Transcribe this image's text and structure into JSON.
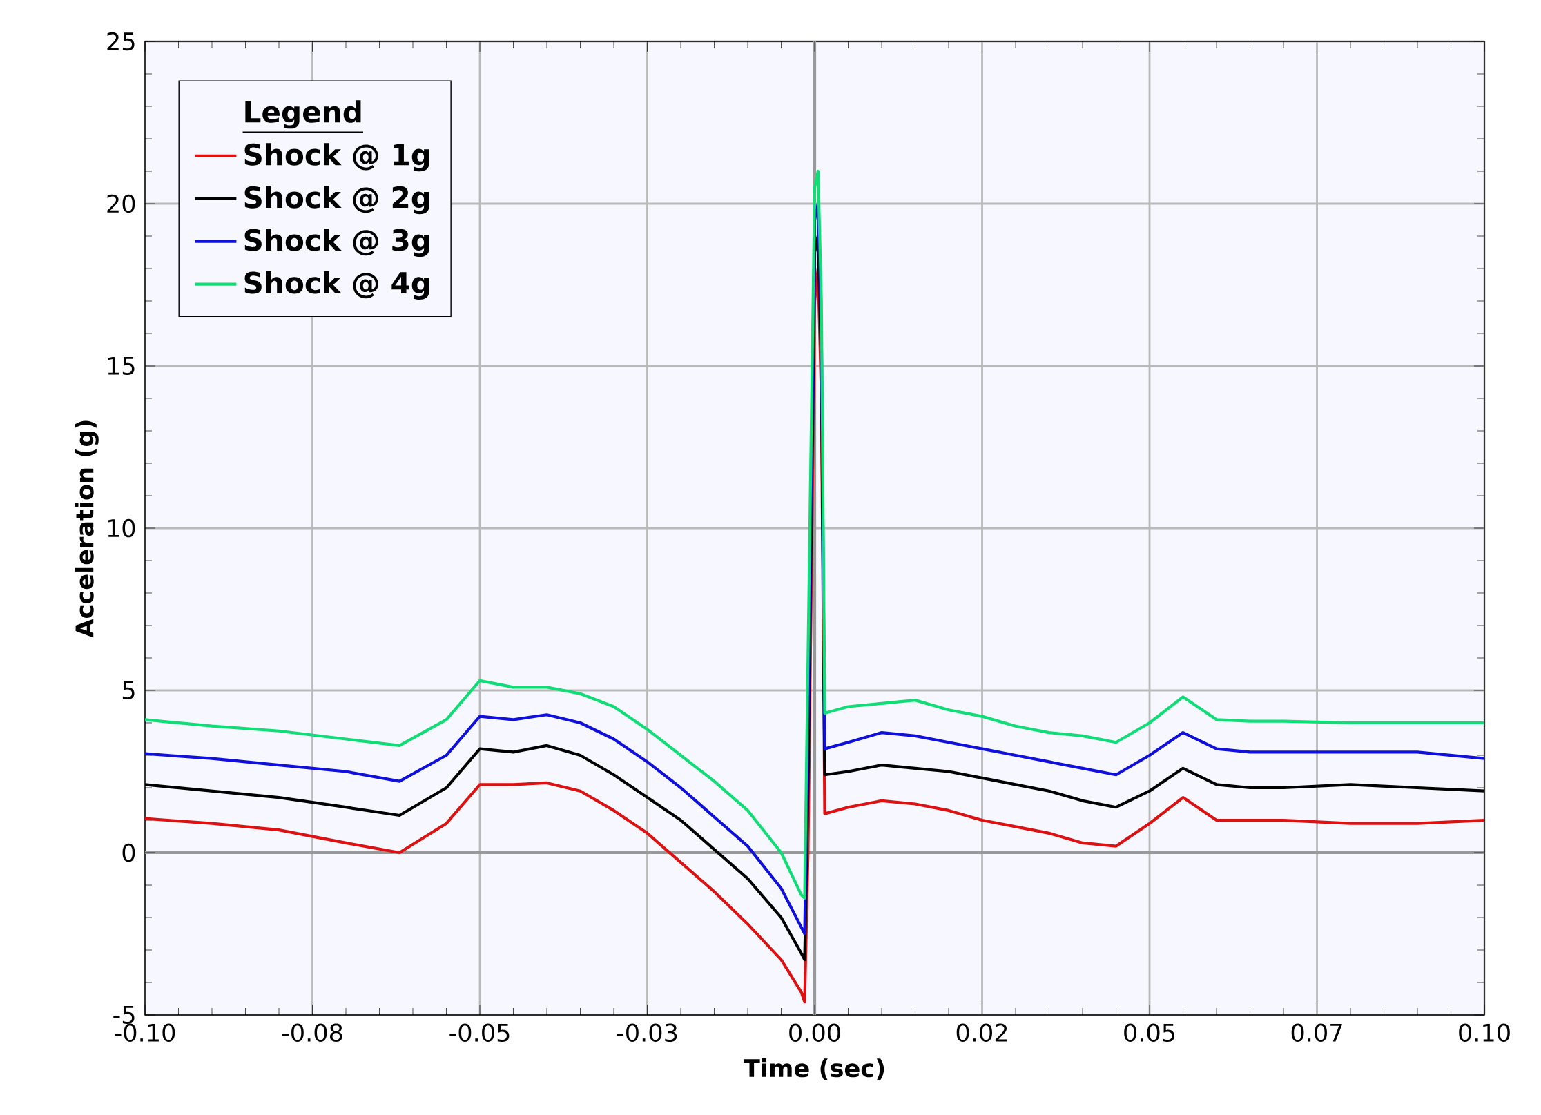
{
  "chart_data": {
    "type": "line",
    "xlabel": "Time (sec)",
    "ylabel": "Acceleration (g)",
    "legend_title": "Legend",
    "legend": "top left",
    "grid": true,
    "xlim": [
      -0.1,
      0.1
    ],
    "ylim": [
      -5,
      25
    ],
    "xticks": [
      {
        "value": -0.1,
        "label": "-0.10"
      },
      {
        "value": -0.075,
        "label": "-0.08"
      },
      {
        "value": -0.05,
        "label": "-0.05"
      },
      {
        "value": -0.025,
        "label": "-0.03"
      },
      {
        "value": 0,
        "label": "0.00"
      },
      {
        "value": 0.025,
        "label": "0.02"
      },
      {
        "value": 0.05,
        "label": "0.05"
      },
      {
        "value": 0.075,
        "label": "0.07"
      },
      {
        "value": 0.1,
        "label": "0.10"
      }
    ],
    "yticks": [
      -5,
      0,
      5,
      10,
      15,
      20,
      25
    ],
    "x": [
      -0.1,
      -0.09,
      -0.08,
      -0.07,
      -0.062,
      -0.055,
      -0.05,
      -0.045,
      -0.04,
      -0.035,
      -0.03,
      -0.025,
      -0.02,
      -0.015,
      -0.01,
      -0.005,
      -0.002,
      -0.0015,
      -0.001,
      0.0,
      0.0005,
      0.001,
      0.0015,
      0.005,
      0.01,
      0.015,
      0.02,
      0.025,
      0.03,
      0.035,
      0.04,
      0.045,
      0.05,
      0.055,
      0.06,
      0.065,
      0.07,
      0.08,
      0.09,
      0.1
    ],
    "series": [
      {
        "name": "Shock @ 1g",
        "color": "#dd1111",
        "values": [
          1.05,
          0.9,
          0.7,
          0.3,
          0.0,
          0.9,
          2.1,
          2.1,
          2.15,
          1.9,
          1.3,
          0.6,
          -0.3,
          -1.2,
          -2.2,
          -3.3,
          -4.3,
          -4.6,
          0.0,
          17,
          18,
          14,
          1.2,
          1.4,
          1.6,
          1.5,
          1.3,
          1.0,
          0.8,
          0.6,
          0.3,
          0.2,
          0.9,
          1.7,
          1.0,
          1.0,
          1.0,
          0.9,
          0.9,
          1.0
        ]
      },
      {
        "name": "Shock @ 2g",
        "color": "#000000",
        "values": [
          2.1,
          1.9,
          1.7,
          1.4,
          1.15,
          2.0,
          3.2,
          3.1,
          3.3,
          3.0,
          2.4,
          1.7,
          1.0,
          0.1,
          -0.8,
          -2.0,
          -3.1,
          -3.3,
          2.0,
          18.5,
          19,
          15,
          2.4,
          2.5,
          2.7,
          2.6,
          2.5,
          2.3,
          2.1,
          1.9,
          1.6,
          1.4,
          1.9,
          2.6,
          2.1,
          2.0,
          2.0,
          2.1,
          2.0,
          1.9
        ]
      },
      {
        "name": "Shock @ 3g",
        "color": "#1010dd",
        "values": [
          3.05,
          2.9,
          2.7,
          2.5,
          2.2,
          3.0,
          4.2,
          4.1,
          4.25,
          4.0,
          3.5,
          2.8,
          2.0,
          1.1,
          0.2,
          -1.1,
          -2.3,
          -2.5,
          4.0,
          19.5,
          20,
          16,
          3.2,
          3.4,
          3.7,
          3.6,
          3.4,
          3.2,
          3.0,
          2.8,
          2.6,
          2.4,
          3.0,
          3.7,
          3.2,
          3.1,
          3.1,
          3.1,
          3.1,
          2.9
        ]
      },
      {
        "name": "Shock @ 4g",
        "color": "#11dd77",
        "values": [
          4.1,
          3.9,
          3.75,
          3.5,
          3.3,
          4.1,
          5.3,
          5.1,
          5.1,
          4.9,
          4.5,
          3.8,
          3.0,
          2.2,
          1.3,
          0.0,
          -1.3,
          -1.4,
          6.0,
          20.5,
          21,
          17,
          4.3,
          4.5,
          4.6,
          4.7,
          4.4,
          4.2,
          3.9,
          3.7,
          3.6,
          3.4,
          4.0,
          4.8,
          4.1,
          4.05,
          4.05,
          4.0,
          4.0,
          4.0
        ]
      }
    ]
  }
}
